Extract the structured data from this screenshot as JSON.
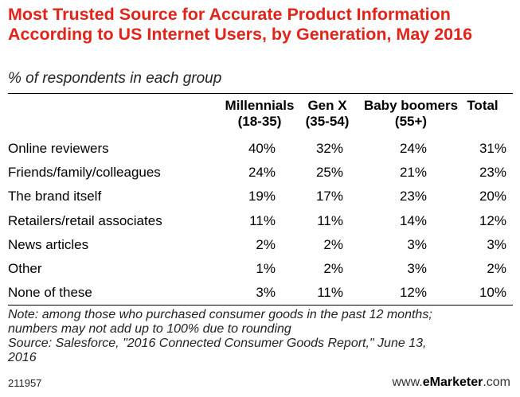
{
  "title": "Most Trusted Source for Accurate Product Information According to US Internet Users, by Generation, May 2016",
  "subtitle": "% of respondents in each group",
  "chart_data": {
    "type": "table",
    "columns": [
      {
        "line1": "Millennials",
        "line2": "(18-35)"
      },
      {
        "line1": "Gen X",
        "line2": "(35-54)"
      },
      {
        "line1": "Baby boomers",
        "line2": "(55+)"
      },
      {
        "line1": "Total",
        "line2": ""
      }
    ],
    "rows": [
      {
        "label": "Online reviewers",
        "values": [
          "40%",
          "32%",
          "24%",
          "31%"
        ]
      },
      {
        "label": "Friends/family/colleagues",
        "values": [
          "24%",
          "25%",
          "21%",
          "23%"
        ]
      },
      {
        "label": "The brand itself",
        "values": [
          "19%",
          "17%",
          "23%",
          "20%"
        ]
      },
      {
        "label": "Retailers/retail associates",
        "values": [
          "11%",
          "11%",
          "14%",
          "12%"
        ]
      },
      {
        "label": "News articles",
        "values": [
          "2%",
          "2%",
          "3%",
          "3%"
        ]
      },
      {
        "label": "Other",
        "values": [
          "1%",
          "2%",
          "3%",
          "2%"
        ]
      },
      {
        "label": "None of these",
        "values": [
          "3%",
          "11%",
          "12%",
          "10%"
        ]
      }
    ]
  },
  "notes": {
    "line1": "Note: among those who purchased consumer goods in the past 12 months;",
    "line2": "numbers may not add up to 100% due to rounding",
    "line3": "Source: Salesforce, \"2016 Connected Consumer Goods Report,\" June 13,",
    "line4": "2016"
  },
  "footer": {
    "id": "211957",
    "brand_prefix": "www.",
    "brand_name": "eMarketer",
    "brand_suffix": ".com"
  }
}
